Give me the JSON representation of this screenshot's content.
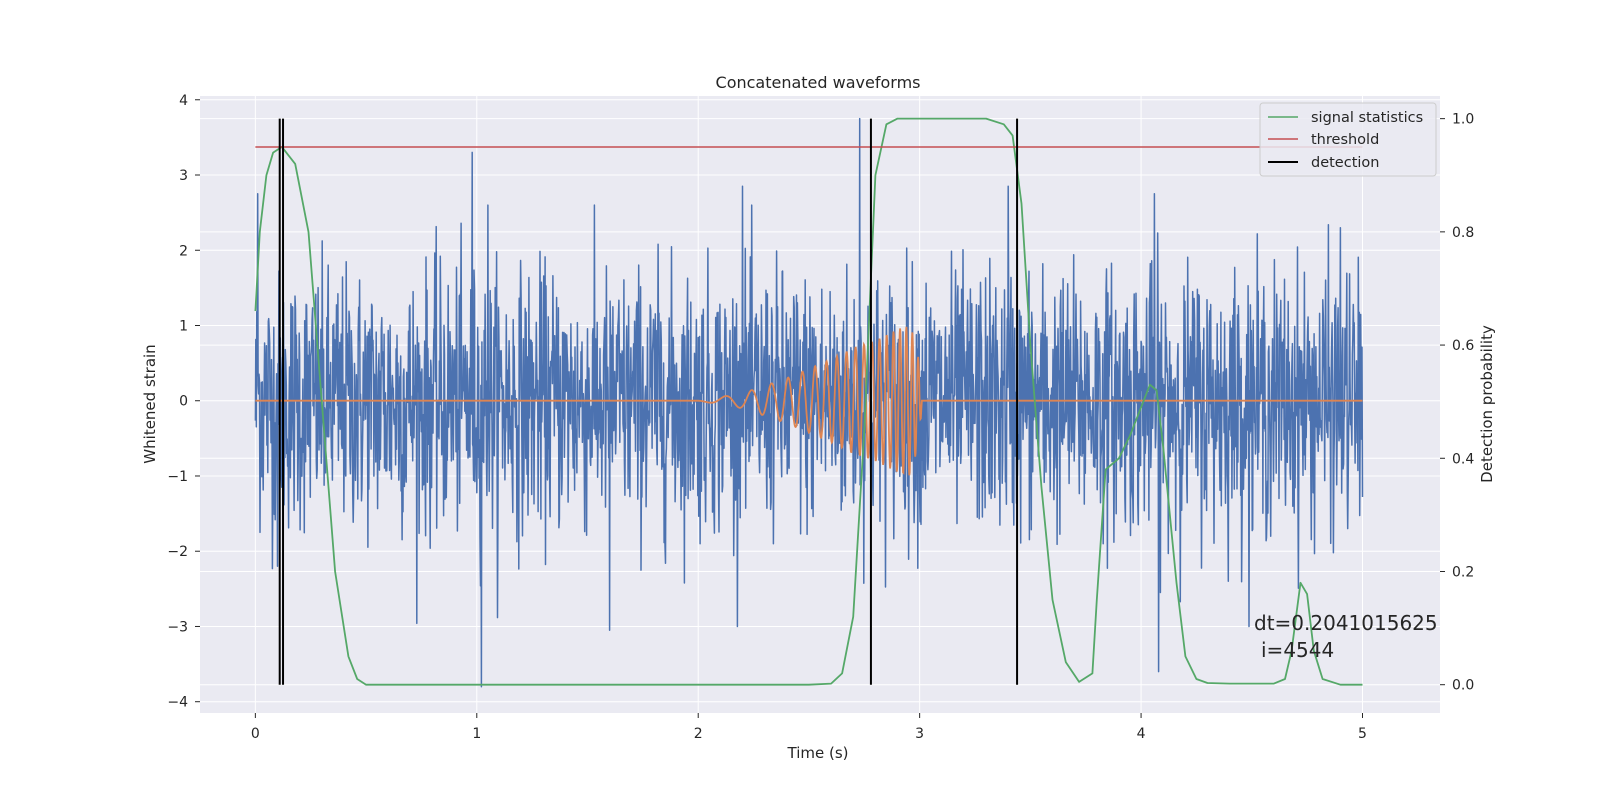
{
  "chart_data": {
    "type": "line",
    "title": "Concatenated waveforms",
    "xlabel": "Time (s)",
    "ylabel": "Whitened strain",
    "ylabel_right": "Detection probability",
    "xlim": [
      -0.25,
      5.35
    ],
    "ylim": [
      -4.15,
      4.05
    ],
    "ylim_right": [
      -0.05,
      1.04
    ],
    "x_ticks": [
      0,
      1,
      2,
      3,
      4,
      5
    ],
    "y_ticks": [
      -4,
      -3,
      -2,
      -1,
      0,
      1,
      2,
      3,
      4
    ],
    "y_ticks_right": [
      0.0,
      0.2,
      0.4,
      0.6,
      0.8,
      1.0
    ],
    "grid": true,
    "legend_position": "top-right",
    "legend": [
      "signal statistics",
      "threshold",
      "detection"
    ],
    "colors": {
      "strain": "#4c72b0",
      "template": "#dd8452",
      "signal_statistics": "#55a868",
      "threshold": "#c44e52",
      "detection": "#000000",
      "background": "#eaeaf2",
      "grid": "#ffffff"
    },
    "series": [
      {
        "name": "",
        "role": "whitened-strain-noise",
        "x_range": [
          0,
          5
        ],
        "std": 0.85,
        "extremes": [
          {
            "x": 0.01,
            "y": 2.75
          },
          {
            "x": 0.1,
            "y": -2.2
          },
          {
            "x": 0.98,
            "y": 3.3
          },
          {
            "x": 1.02,
            "y": -3.8
          },
          {
            "x": 1.05,
            "y": 2.6
          },
          {
            "x": 1.6,
            "y": -3.05
          },
          {
            "x": 2.2,
            "y": 2.85
          },
          {
            "x": 2.73,
            "y": 3.75
          },
          {
            "x": 3.4,
            "y": 2.85
          },
          {
            "x": 4.06,
            "y": 2.75
          },
          {
            "x": 4.08,
            "y": -3.6
          },
          {
            "x": 4.9,
            "y": 2.3
          }
        ]
      },
      {
        "name": "",
        "role": "template-chirp",
        "x": [
          0,
          2.0,
          2.2,
          2.4,
          2.6,
          2.7,
          2.8,
          2.9,
          2.96,
          3.0,
          3.01,
          5.0
        ],
        "envelope": [
          0,
          0,
          0.1,
          0.3,
          0.55,
          0.7,
          0.8,
          0.95,
          1.0,
          0.5,
          0,
          0
        ]
      },
      {
        "name": "signal statistics",
        "x": [
          0,
          0.02,
          0.05,
          0.08,
          0.12,
          0.18,
          0.24,
          0.3,
          0.36,
          0.42,
          0.46,
          0.5,
          1.0,
          2.0,
          2.5,
          2.6,
          2.65,
          2.7,
          2.75,
          2.8,
          2.85,
          2.9,
          3.0,
          3.3,
          3.38,
          3.42,
          3.46,
          3.5,
          3.55,
          3.6,
          3.66,
          3.72,
          3.78,
          3.8,
          3.84,
          3.9,
          3.95,
          4.0,
          4.04,
          4.07,
          4.1,
          4.16,
          4.2,
          4.25,
          4.3,
          4.4,
          4.6,
          4.65,
          4.68,
          4.72,
          4.75,
          4.78,
          4.82,
          4.9,
          5.0
        ],
        "values": [
          0.66,
          0.8,
          0.9,
          0.94,
          0.95,
          0.92,
          0.8,
          0.5,
          0.2,
          0.05,
          0.01,
          0.0,
          0.0,
          0.0,
          0.0,
          0.002,
          0.02,
          0.12,
          0.45,
          0.9,
          0.99,
          1.0,
          1.0,
          1.0,
          0.99,
          0.97,
          0.85,
          0.6,
          0.35,
          0.15,
          0.04,
          0.005,
          0.02,
          0.15,
          0.38,
          0.4,
          0.44,
          0.49,
          0.53,
          0.52,
          0.42,
          0.18,
          0.05,
          0.01,
          0.003,
          0.002,
          0.002,
          0.01,
          0.06,
          0.18,
          0.16,
          0.06,
          0.01,
          0.0,
          0.0
        ]
      },
      {
        "name": "threshold",
        "x": [
          0,
          5
        ],
        "values": [
          0.95,
          0.95
        ]
      }
    ],
    "detections": [
      0.11,
      0.125,
      2.78,
      3.44
    ],
    "annotation": {
      "dt_text": "dt=0.2041015625",
      "i_text": "i=4544",
      "x": 4.5,
      "y": -3.0
    }
  }
}
